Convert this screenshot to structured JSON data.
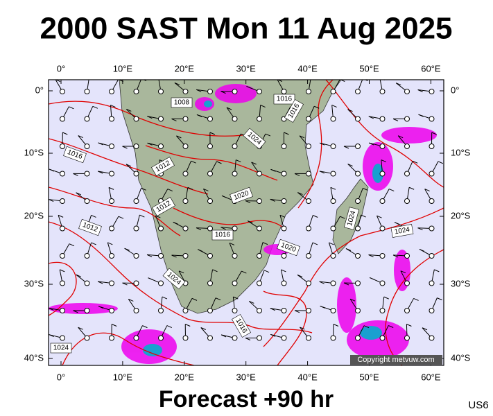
{
  "title": "2000 SAST Mon 11 Aug 2025",
  "lon_labels": [
    "0°",
    "10°E",
    "20°E",
    "30°E",
    "40°E",
    "50°E",
    "60°E"
  ],
  "lat_labels": [
    "0°",
    "10°S",
    "20°S",
    "30°S",
    "40°S"
  ],
  "isobar_labels": [
    "1008",
    "1016",
    "1016",
    "1016",
    "1012",
    "1012",
    "1012",
    "1020",
    "1016",
    "1020",
    "1024",
    "1016",
    "1024",
    "1024",
    "1024",
    "1024"
  ],
  "copyright": "Copyright metvuw.com",
  "footer": "Forecast +90 hr",
  "code": "US6"
}
